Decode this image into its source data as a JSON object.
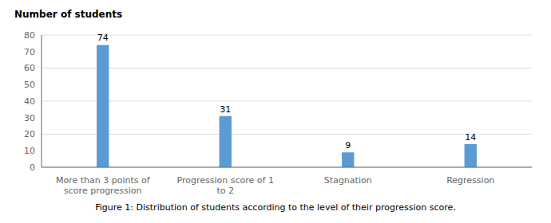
{
  "chart_data": {
    "type": "bar",
    "title": "Figure 1: Distribution of students according to the level of their progression score.",
    "ylabel": "Number of students",
    "categories": [
      "More than 3 points of\nscore progression",
      "Progression score of 1\nto 2",
      "Stagnation",
      "Regression"
    ],
    "values": [
      74,
      31,
      9,
      14
    ],
    "color": "#5B9BD5",
    "ylim": [
      0,
      80
    ],
    "yticks": [
      0,
      10,
      20,
      30,
      40,
      50,
      60,
      70,
      80
    ],
    "grid": true,
    "data_labels": true
  }
}
